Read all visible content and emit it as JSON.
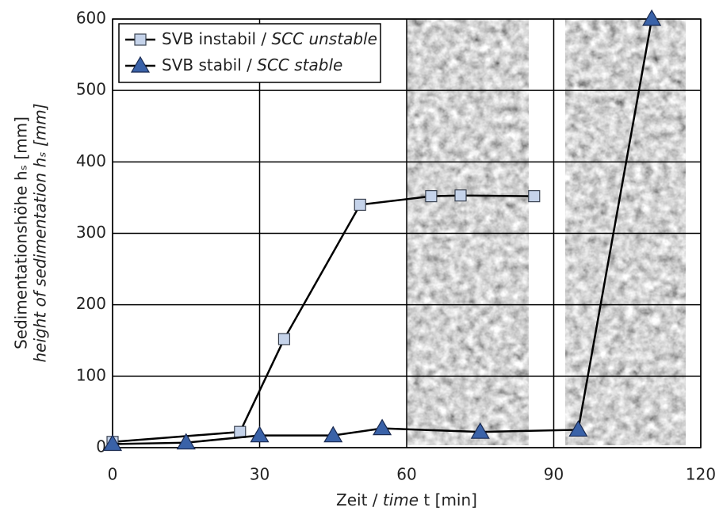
{
  "chart_data": {
    "type": "line",
    "x_label": "Zeit / time t [min]",
    "y_label": [
      "Sedimentationshöhe hₛ [mm]",
      "height of sedimentation hₛ [mm]"
    ],
    "xlim": [
      0,
      120
    ],
    "xticks": [
      0,
      30,
      60,
      90,
      120
    ],
    "ylim": [
      0,
      600
    ],
    "yticks": [
      0,
      100,
      200,
      300,
      400,
      500,
      600
    ],
    "grid": true,
    "legend": "upper left",
    "series": [
      {
        "name": "SVB instabil / SCC unstable",
        "color": "#c5d3ea",
        "marker": "square",
        "x": [
          0,
          26,
          35,
          50.5,
          65,
          71,
          86
        ],
        "values": [
          8,
          22,
          152,
          340,
          352,
          353,
          352
        ]
      },
      {
        "name": "SVB stabil / SCC stable",
        "color": "#3a62a8",
        "marker": "triangle",
        "x": [
          0,
          15,
          30,
          45,
          55,
          75,
          95,
          110
        ],
        "values": [
          5,
          7,
          17,
          17,
          27,
          22,
          25,
          600
        ]
      }
    ]
  }
}
